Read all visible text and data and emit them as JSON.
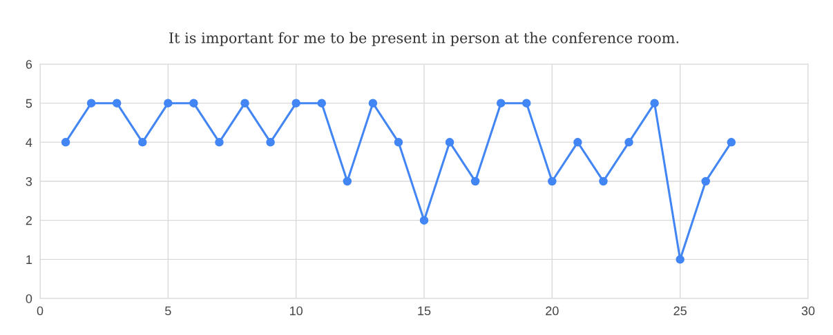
{
  "chart_data": {
    "type": "line",
    "title": "It is important for me to be present in person at the conference room.",
    "x": [
      1,
      2,
      3,
      4,
      5,
      6,
      7,
      8,
      9,
      10,
      11,
      12,
      13,
      14,
      15,
      16,
      17,
      18,
      19,
      20,
      21,
      22,
      23,
      24,
      25,
      26,
      27
    ],
    "series": [
      {
        "color": "#4285f4",
        "values": [
          4,
          5,
          5,
          4,
          5,
          5,
          4,
          5,
          4,
          5,
          5,
          3,
          5,
          4,
          2,
          4,
          3,
          5,
          5,
          3,
          4,
          3,
          4,
          5,
          1,
          3,
          4
        ]
      }
    ],
    "xlim": [
      0,
      30
    ],
    "xticks": [
      0,
      5,
      10,
      15,
      20,
      25,
      30
    ],
    "ylim": [
      0,
      6
    ],
    "yticks": [
      0,
      1,
      2,
      3,
      4,
      5,
      6
    ],
    "grid": true,
    "marker": "circle",
    "line_style": "solid",
    "legend": false
  }
}
